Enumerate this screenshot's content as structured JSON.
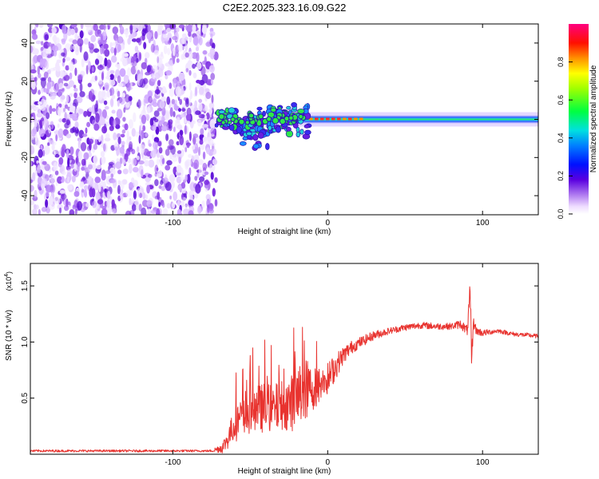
{
  "title": "C2E2.2025.323.16.09.G22",
  "colors": {
    "snr_line": "#e8332f",
    "axis": "#000000",
    "ridge": "#1fc84a",
    "scatter_purple": "#7a2be0"
  },
  "colorbar": {
    "label": "Normalized spectral amplitude",
    "ticks": [
      "0.0",
      "0.2",
      "0.4",
      "0.6",
      "0.8"
    ],
    "tick_values": [
      0.0,
      0.2,
      0.4,
      0.6,
      0.8
    ],
    "range": [
      0,
      1
    ]
  },
  "chart_data": [
    {
      "type": "heatmap",
      "name": "spectrogram",
      "xlabel": "Height of straight line (km)",
      "ylabel": "Frequency (Hz)",
      "xlim": [
        -192,
        136
      ],
      "ylim": [
        -50,
        50
      ],
      "x_ticks": [
        -100,
        0,
        100
      ],
      "x_tick_labels": [
        "-100",
        "0",
        "100"
      ],
      "y_ticks": [
        -40,
        -20,
        0,
        20,
        40
      ],
      "y_tick_labels": [
        "-40",
        "-20",
        "0",
        "20",
        "40"
      ],
      "noise_region_x": [
        -192,
        -72
      ],
      "ridge_x": [
        -72,
        136
      ],
      "ridge_center_hz": 0,
      "ridge_peak_segments_x": [
        [
          -12,
          22
        ]
      ]
    },
    {
      "type": "line",
      "name": "snr",
      "xlabel": "Height of straight line (km)",
      "ylabel": "SNR (10 * v/v)",
      "y_multiplier_label": "(x10",
      "y_multiplier_exp": "4",
      "xlim": [
        -192,
        136
      ],
      "ylim": [
        0,
        1.7
      ],
      "x_ticks": [
        -100,
        0,
        100
      ],
      "x_tick_labels": [
        "-100",
        "0",
        "100"
      ],
      "y_ticks": [
        0.5,
        1.0,
        1.5
      ],
      "y_tick_labels": [
        "0.5",
        "1.0",
        "1.5"
      ],
      "series": [
        {
          "name": "SNR",
          "x": [
            -192,
            -150,
            -100,
            -75,
            -68,
            -64,
            -62,
            -58,
            -54,
            -50,
            -45,
            -40,
            -35,
            -30,
            -25,
            -20,
            -16,
            -10,
            -5,
            0,
            5,
            10,
            15,
            20,
            30,
            40,
            50,
            60,
            70,
            80,
            86,
            90,
            92,
            93,
            94,
            96,
            100,
            110,
            120,
            130,
            136
          ],
          "y": [
            0.03,
            0.03,
            0.03,
            0.03,
            0.06,
            0.15,
            0.22,
            0.3,
            0.32,
            0.36,
            0.4,
            0.42,
            0.4,
            0.44,
            0.45,
            0.48,
            0.58,
            0.58,
            0.62,
            0.67,
            0.78,
            0.88,
            0.95,
            0.99,
            1.06,
            1.1,
            1.13,
            1.15,
            1.14,
            1.14,
            1.16,
            1.1,
            1.4,
            0.8,
            1.18,
            1.1,
            1.08,
            1.1,
            1.07,
            1.06,
            1.05
          ],
          "noise_amp": [
            0.01,
            0.01,
            0.01,
            0.01,
            0.05,
            0.1,
            0.12,
            0.18,
            0.18,
            0.2,
            0.22,
            0.22,
            0.22,
            0.22,
            0.24,
            0.28,
            0.32,
            0.2,
            0.16,
            0.15,
            0.12,
            0.08,
            0.06,
            0.05,
            0.04,
            0.03,
            0.03,
            0.03,
            0.03,
            0.03,
            0.04,
            0.05,
            0.15,
            0.15,
            0.05,
            0.04,
            0.03,
            0.02,
            0.02,
            0.02,
            0.02
          ]
        }
      ]
    }
  ]
}
